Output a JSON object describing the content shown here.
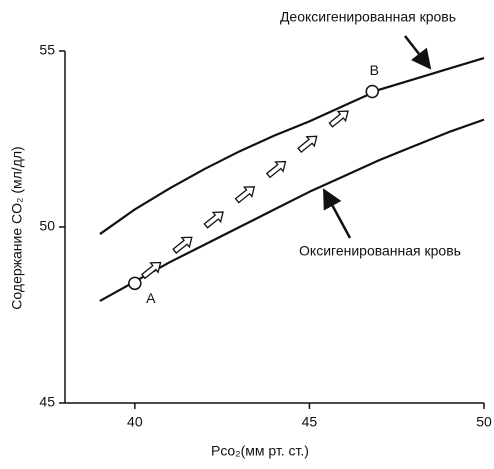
{
  "chart_data": {
    "type": "line",
    "x_label": "Pco₂(мм рт. ст.)",
    "y_label": "Содержание CO₂ (мл/дл)",
    "x": [
      39,
      40,
      41,
      42,
      43,
      44,
      45,
      46,
      47,
      48,
      49,
      50
    ],
    "series": [
      {
        "name": "Деоксигенированная кровь",
        "color": "#111111",
        "values": [
          49.8,
          50.5,
          51.1,
          51.65,
          52.15,
          52.6,
          53.0,
          53.45,
          53.9,
          54.2,
          54.5,
          54.8
        ]
      },
      {
        "name": "Оксигенированная кровь",
        "color": "#111111",
        "values": [
          47.9,
          48.45,
          49.0,
          49.5,
          50.0,
          50.5,
          51.0,
          51.45,
          51.9,
          52.3,
          52.7,
          53.05
        ]
      }
    ],
    "points": [
      {
        "label": "A",
        "x": 40,
        "y": 48.4
      },
      {
        "label": "B",
        "x": 46.8,
        "y": 53.85
      }
    ],
    "xlim": [
      38,
      50
    ],
    "ylim": [
      45,
      55
    ],
    "xticks": [
      40,
      45,
      50
    ],
    "yticks": [
      45,
      50,
      55
    ],
    "grid": false
  }
}
